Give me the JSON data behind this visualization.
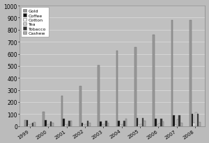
{
  "years": [
    "1999",
    "2000",
    "2001",
    "2002",
    "2003",
    "2004",
    "2005",
    "2006",
    "2007",
    "2008"
  ],
  "gold": [
    52,
    120,
    250,
    335,
    504,
    625,
    655,
    760,
    880,
    880
  ],
  "coffee": [
    50,
    50,
    60,
    30,
    40,
    45,
    70,
    60,
    90,
    100
  ],
  "cotton": [
    12,
    12,
    12,
    12,
    12,
    12,
    12,
    12,
    12,
    30
  ],
  "tea": [
    15,
    18,
    15,
    15,
    18,
    18,
    18,
    20,
    55,
    115
  ],
  "tobacco": [
    30,
    40,
    45,
    42,
    42,
    42,
    70,
    60,
    88,
    100
  ],
  "cashew": [
    32,
    30,
    42,
    28,
    30,
    60,
    42,
    40,
    30,
    35
  ],
  "colors": {
    "gold": "#999999",
    "coffee": "#111111",
    "cotton": "#eeeeee",
    "tea": "#cccccc",
    "tobacco": "#333333",
    "cashew": "#aaaaaa"
  },
  "legend_labels": [
    "Gold",
    "Coffee",
    "Cotton",
    "Tea",
    "Tobacco",
    "Cashew"
  ],
  "ylim": [
    0,
    1000
  ],
  "yticks": [
    0,
    100,
    200,
    300,
    400,
    500,
    600,
    700,
    800,
    900,
    1000
  ],
  "bg_color": "#bbbbbb",
  "plot_bg_color": "#c0c0c0",
  "bar_edge_color": "#666666",
  "grid_color": "#dddddd"
}
